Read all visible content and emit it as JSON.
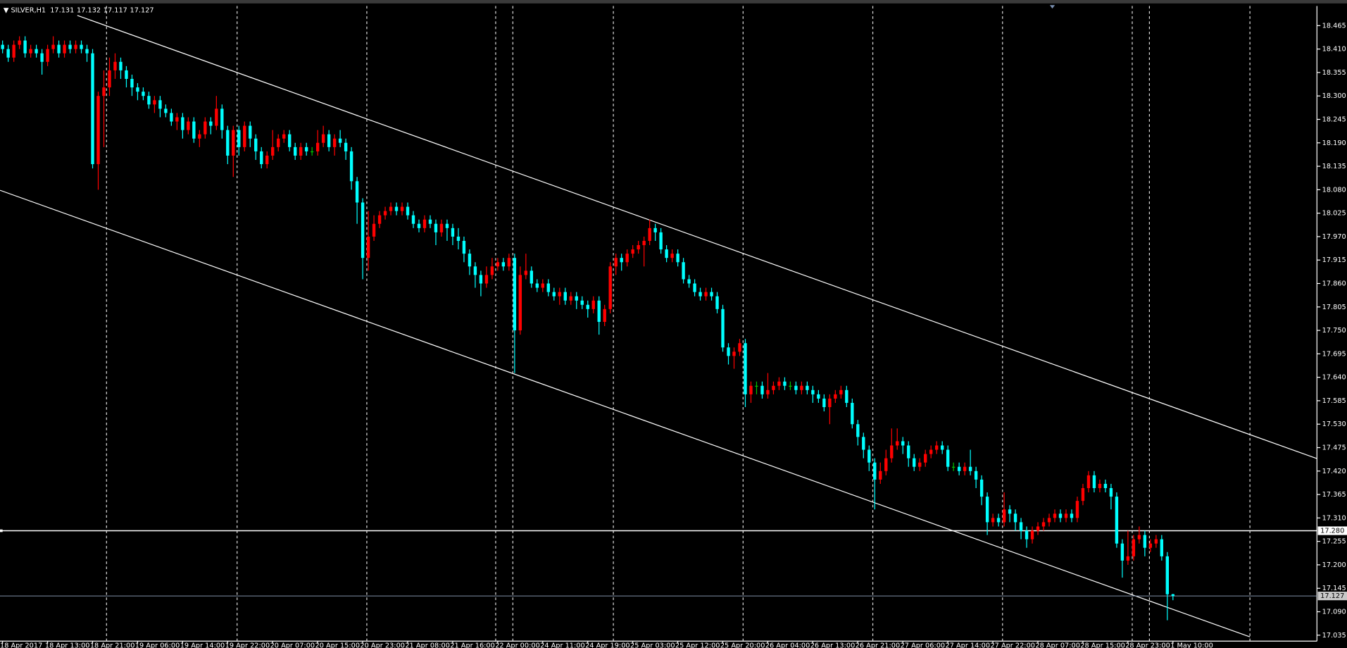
{
  "chart_data": {
    "type": "candlestick",
    "title": "SILVER,H1",
    "categories": [
      "18 Apr 2017",
      null,
      null,
      null,
      null,
      null,
      null,
      null,
      "18 Apr 13:00",
      null,
      null,
      null,
      null,
      null,
      null,
      null,
      "18 Apr 21:00",
      null,
      null,
      null,
      null,
      null,
      null,
      null,
      "19 Apr 06:00",
      null,
      null,
      null,
      null,
      null,
      null,
      null,
      "19 Apr 14:00",
      null,
      null,
      null,
      null,
      null,
      null,
      null,
      "19 Apr 22:00",
      null,
      null,
      null,
      null,
      null,
      null,
      null,
      "20 Apr 07:00",
      null,
      null,
      null,
      null,
      null,
      null,
      null,
      "20 Apr 15:00",
      null,
      null,
      null,
      null,
      null,
      null,
      null,
      "20 Apr 23:00",
      null,
      null,
      null,
      null,
      null,
      null,
      null,
      "21 Apr 08:00",
      null,
      null,
      null,
      null,
      null,
      null,
      null,
      "21 Apr 16:00",
      null,
      null,
      null,
      null,
      null,
      null,
      null,
      "22 Apr 00:00",
      null,
      null,
      null,
      null,
      null,
      null,
      null,
      "24 Apr 11:00",
      null,
      null,
      null,
      null,
      null,
      null,
      null,
      "24 Apr 19:00",
      null,
      null,
      null,
      null,
      null,
      null,
      null,
      "25 Apr 03:00",
      null,
      null,
      null,
      null,
      null,
      null,
      null,
      "25 Apr 12:00",
      null,
      null,
      null,
      null,
      null,
      null,
      null,
      "25 Apr 20:00",
      null,
      null,
      null,
      null,
      null,
      null,
      null,
      "26 Apr 04:00",
      null,
      null,
      null,
      null,
      null,
      null,
      null,
      "26 Apr 13:00",
      null,
      null,
      null,
      null,
      null,
      null,
      null,
      "26 Apr 21:00",
      null,
      null,
      null,
      null,
      null,
      null,
      null,
      "27 Apr 06:00",
      null,
      null,
      null,
      null,
      null,
      null,
      null,
      "27 Apr 14:00",
      null,
      null,
      null,
      null,
      null,
      null,
      null,
      "27 Apr 22:00",
      null,
      null,
      null,
      null,
      null,
      null,
      null,
      "28 Apr 07:00",
      null,
      null,
      null,
      null,
      null,
      null,
      null,
      "28 Apr 15:00",
      null,
      null,
      null,
      null,
      null,
      null,
      null,
      "28 Apr 23:00",
      null,
      null,
      null,
      null,
      null,
      null,
      null,
      "1 May 10:00"
    ],
    "open": [
      18.42,
      18.41,
      18.39,
      18.42,
      18.43,
      18.4,
      18.41,
      18.4,
      18.38,
      18.41,
      18.42,
      18.4,
      18.42,
      18.41,
      18.42,
      18.41,
      18.4,
      18.14,
      18.3,
      18.32,
      18.36,
      18.38,
      18.36,
      18.34,
      18.32,
      18.31,
      18.3,
      18.28,
      18.29,
      18.27,
      18.26,
      18.24,
      18.25,
      18.22,
      18.24,
      18.2,
      18.21,
      18.24,
      18.23,
      18.27,
      18.22,
      18.16,
      18.22,
      18.18,
      18.23,
      18.2,
      18.17,
      18.14,
      18.16,
      18.18,
      18.2,
      18.21,
      18.18,
      18.16,
      18.18,
      18.17,
      18.17,
      18.19,
      18.21,
      18.18,
      18.2,
      18.19,
      18.17,
      18.1,
      18.05,
      17.92,
      17.97,
      18.0,
      18.02,
      18.03,
      18.04,
      18.03,
      18.04,
      18.02,
      18.0,
      17.99,
      18.01,
      18.0,
      17.98,
      18.0,
      17.99,
      17.97,
      17.96,
      17.93,
      17.9,
      17.88,
      17.86,
      17.88,
      17.9,
      17.91,
      17.9,
      17.92,
      17.75,
      17.88,
      17.89,
      17.86,
      17.85,
      17.86,
      17.84,
      17.83,
      17.84,
      17.82,
      17.83,
      17.82,
      17.81,
      17.8,
      17.82,
      17.77,
      17.8,
      17.9,
      17.92,
      17.91,
      17.93,
      17.94,
      17.95,
      17.96,
      17.99,
      17.98,
      17.94,
      17.92,
      17.93,
      17.91,
      17.87,
      17.86,
      17.84,
      17.83,
      17.84,
      17.83,
      17.8,
      17.71,
      17.69,
      17.7,
      17.72,
      17.6,
      17.62,
      17.62,
      17.6,
      17.61,
      17.62,
      17.63,
      17.62,
      17.62,
      17.61,
      17.62,
      17.61,
      17.6,
      17.59,
      17.57,
      17.59,
      17.6,
      17.61,
      17.58,
      17.53,
      17.5,
      17.47,
      17.44,
      17.4,
      17.42,
      17.45,
      17.48,
      17.49,
      17.48,
      17.45,
      17.43,
      17.44,
      17.46,
      17.47,
      17.48,
      17.47,
      17.43,
      17.43,
      17.42,
      17.43,
      17.42,
      17.4,
      17.36,
      17.3,
      17.31,
      17.3,
      17.33,
      17.32,
      17.3,
      17.28,
      17.26,
      17.28,
      17.29,
      17.3,
      17.31,
      17.32,
      17.31,
      17.32,
      17.31,
      17.35,
      17.38,
      17.41,
      17.38,
      17.39,
      17.38,
      17.36,
      17.25,
      17.21,
      17.22,
      17.26,
      17.27,
      17.24,
      17.25,
      17.26,
      17.22,
      17.131
    ],
    "high": [
      18.43,
      18.42,
      18.43,
      18.44,
      18.44,
      18.42,
      18.42,
      18.41,
      18.42,
      18.44,
      18.43,
      18.43,
      18.43,
      18.43,
      18.43,
      18.42,
      18.41,
      18.31,
      18.36,
      18.39,
      18.4,
      18.39,
      18.37,
      18.35,
      18.33,
      18.32,
      18.31,
      18.3,
      18.3,
      18.28,
      18.27,
      18.26,
      18.26,
      18.25,
      18.25,
      18.22,
      18.25,
      18.25,
      18.3,
      18.28,
      18.23,
      18.23,
      18.23,
      18.24,
      18.24,
      18.21,
      18.18,
      18.17,
      18.22,
      18.21,
      18.22,
      18.22,
      18.19,
      18.19,
      18.19,
      18.18,
      18.22,
      18.23,
      18.22,
      18.21,
      18.22,
      18.2,
      18.18,
      18.11,
      18.06,
      18.03,
      18.02,
      18.03,
      18.04,
      18.05,
      18.05,
      18.05,
      18.05,
      18.03,
      18.01,
      18.02,
      18.02,
      18.01,
      18.01,
      18.01,
      18.0,
      17.99,
      17.97,
      17.94,
      17.91,
      17.89,
      17.9,
      17.92,
      17.92,
      17.92,
      17.93,
      17.93,
      17.9,
      17.93,
      17.9,
      17.87,
      17.87,
      17.87,
      17.85,
      17.85,
      17.85,
      17.84,
      17.84,
      17.83,
      17.82,
      17.83,
      17.83,
      17.81,
      17.91,
      17.93,
      17.93,
      17.94,
      17.95,
      17.96,
      17.97,
      18.01,
      18.0,
      17.99,
      17.95,
      17.94,
      17.94,
      17.92,
      17.88,
      17.87,
      17.85,
      17.85,
      17.85,
      17.84,
      17.81,
      17.72,
      17.71,
      17.73,
      17.73,
      17.63,
      17.63,
      17.63,
      17.65,
      17.63,
      17.64,
      17.64,
      17.63,
      17.63,
      17.63,
      17.63,
      17.62,
      17.61,
      17.6,
      17.6,
      17.61,
      17.62,
      17.62,
      17.59,
      17.54,
      17.51,
      17.48,
      17.45,
      17.44,
      17.47,
      17.52,
      17.52,
      17.5,
      17.49,
      17.46,
      17.45,
      17.47,
      17.48,
      17.49,
      17.49,
      17.48,
      17.44,
      17.44,
      17.44,
      17.47,
      17.43,
      17.41,
      17.37,
      17.32,
      17.32,
      17.37,
      17.34,
      17.33,
      17.31,
      17.29,
      17.29,
      17.3,
      17.31,
      17.32,
      17.33,
      17.33,
      17.33,
      17.33,
      17.36,
      17.39,
      17.42,
      17.42,
      17.4,
      17.4,
      17.39,
      17.37,
      17.26,
      17.28,
      17.27,
      17.29,
      17.28,
      17.26,
      17.27,
      17.27,
      17.23,
      17.132
    ],
    "low": [
      18.4,
      18.38,
      18.38,
      18.41,
      18.39,
      18.39,
      18.39,
      18.35,
      18.37,
      18.4,
      18.39,
      18.39,
      18.4,
      18.4,
      18.4,
      18.38,
      18.13,
      18.08,
      18.18,
      18.3,
      18.34,
      18.34,
      18.32,
      18.3,
      18.29,
      18.29,
      18.27,
      18.26,
      18.25,
      18.25,
      18.23,
      18.22,
      18.2,
      18.21,
      18.19,
      18.18,
      18.2,
      18.21,
      18.22,
      18.2,
      18.14,
      18.11,
      18.16,
      18.17,
      18.18,
      18.15,
      18.13,
      18.13,
      18.15,
      18.17,
      18.19,
      18.17,
      18.15,
      18.15,
      18.16,
      18.16,
      18.16,
      18.18,
      18.17,
      18.16,
      18.18,
      18.15,
      18.08,
      18.0,
      17.87,
      17.89,
      17.96,
      17.99,
      18.01,
      18.02,
      18.02,
      18.02,
      18.01,
      17.99,
      17.98,
      17.98,
      17.99,
      17.95,
      17.97,
      17.96,
      17.95,
      17.94,
      17.91,
      17.88,
      17.85,
      17.83,
      17.85,
      17.87,
      17.89,
      17.89,
      17.89,
      17.65,
      17.74,
      17.87,
      17.85,
      17.84,
      17.84,
      17.83,
      17.82,
      17.81,
      17.81,
      17.81,
      17.8,
      17.8,
      17.78,
      17.79,
      17.74,
      17.76,
      17.79,
      17.88,
      17.89,
      17.9,
      17.92,
      17.93,
      17.9,
      17.95,
      17.96,
      17.93,
      17.91,
      17.91,
      17.9,
      17.86,
      17.85,
      17.83,
      17.82,
      17.82,
      17.82,
      17.79,
      17.7,
      17.67,
      17.66,
      17.69,
      17.57,
      17.58,
      17.6,
      17.59,
      17.59,
      17.6,
      17.61,
      17.61,
      17.61,
      17.6,
      17.6,
      17.6,
      17.58,
      17.58,
      17.56,
      17.53,
      17.58,
      17.59,
      17.57,
      17.52,
      17.48,
      17.45,
      17.42,
      17.33,
      17.39,
      17.41,
      17.44,
      17.47,
      17.46,
      17.43,
      17.42,
      17.42,
      17.43,
      17.45,
      17.46,
      17.46,
      17.42,
      17.42,
      17.41,
      17.41,
      17.41,
      17.38,
      17.34,
      17.27,
      17.29,
      17.29,
      17.29,
      17.3,
      17.28,
      17.26,
      17.24,
      17.25,
      17.27,
      17.28,
      17.29,
      17.3,
      17.3,
      17.3,
      17.3,
      17.3,
      17.34,
      17.37,
      17.37,
      17.37,
      17.37,
      17.33,
      17.24,
      17.17,
      17.2,
      17.21,
      17.25,
      17.22,
      17.23,
      17.24,
      17.21,
      17.07,
      17.117
    ],
    "close": [
      18.41,
      18.39,
      18.42,
      18.43,
      18.4,
      18.41,
      18.4,
      18.38,
      18.41,
      18.42,
      18.4,
      18.42,
      18.41,
      18.42,
      18.41,
      18.4,
      18.14,
      18.3,
      18.32,
      18.36,
      18.38,
      18.36,
      18.34,
      18.32,
      18.31,
      18.3,
      18.28,
      18.29,
      18.27,
      18.26,
      18.24,
      18.25,
      18.22,
      18.24,
      18.2,
      18.21,
      18.24,
      18.23,
      18.27,
      18.22,
      18.16,
      18.22,
      18.18,
      18.23,
      18.2,
      18.17,
      18.14,
      18.16,
      18.18,
      18.2,
      18.21,
      18.18,
      18.16,
      18.18,
      18.17,
      18.17,
      18.19,
      18.21,
      18.18,
      18.2,
      18.19,
      18.17,
      18.1,
      18.05,
      17.92,
      17.97,
      18.0,
      18.02,
      18.03,
      18.04,
      18.03,
      18.04,
      18.02,
      18.0,
      17.99,
      18.01,
      18.0,
      17.98,
      18.0,
      17.99,
      17.97,
      17.96,
      17.93,
      17.9,
      17.88,
      17.86,
      17.88,
      17.9,
      17.91,
      17.9,
      17.92,
      17.75,
      17.88,
      17.89,
      17.86,
      17.85,
      17.86,
      17.84,
      17.83,
      17.84,
      17.82,
      17.83,
      17.82,
      17.81,
      17.8,
      17.82,
      17.77,
      17.8,
      17.9,
      17.92,
      17.91,
      17.93,
      17.94,
      17.95,
      17.96,
      17.99,
      17.98,
      17.94,
      17.92,
      17.93,
      17.91,
      17.87,
      17.86,
      17.84,
      17.83,
      17.84,
      17.83,
      17.8,
      17.71,
      17.69,
      17.7,
      17.72,
      17.6,
      17.62,
      17.62,
      17.6,
      17.61,
      17.62,
      17.63,
      17.62,
      17.62,
      17.61,
      17.62,
      17.61,
      17.6,
      17.59,
      17.57,
      17.59,
      17.6,
      17.61,
      17.58,
      17.53,
      17.5,
      17.47,
      17.44,
      17.4,
      17.42,
      17.45,
      17.48,
      17.49,
      17.48,
      17.45,
      17.43,
      17.44,
      17.46,
      17.47,
      17.48,
      17.47,
      17.43,
      17.43,
      17.42,
      17.43,
      17.42,
      17.4,
      17.36,
      17.3,
      17.31,
      17.3,
      17.33,
      17.32,
      17.3,
      17.28,
      17.26,
      17.28,
      17.29,
      17.3,
      17.31,
      17.32,
      17.31,
      17.32,
      17.31,
      17.35,
      17.38,
      17.41,
      17.38,
      17.39,
      17.38,
      17.36,
      17.25,
      17.21,
      17.22,
      17.26,
      17.27,
      17.24,
      17.25,
      17.26,
      17.22,
      17.131,
      17.127
    ],
    "up_color": "#ff0000",
    "down_color": "#00ffff",
    "flat_color": "#00c000",
    "ylim": [
      17.021,
      18.511
    ],
    "yticks": [
      18.465,
      {
        "value": 18.41,
        "label": "18.410"
      },
      18.355,
      {
        "value": 18.3,
        "label": "18.300"
      },
      18.245,
      {
        "value": 18.19,
        "label": "18.190"
      },
      18.135,
      {
        "value": 18.08,
        "label": "18.080"
      },
      18.025,
      {
        "value": 17.97,
        "label": "17.970"
      },
      17.915,
      {
        "value": 17.86,
        "label": "17.860"
      },
      17.805,
      {
        "value": 17.75,
        "label": "17.750"
      },
      17.695,
      {
        "value": 17.64,
        "label": "17.640"
      },
      17.585,
      {
        "value": 17.53,
        "label": "17.530"
      },
      17.475,
      {
        "value": 17.42,
        "label": "17.420"
      },
      17.365,
      {
        "value": 17.31,
        "label": "17.310"
      },
      17.255,
      {
        "value": 17.2,
        "label": "17.200"
      },
      17.145,
      {
        "value": 17.09,
        "label": "17.090"
      },
      17.035
    ],
    "hline": {
      "value": 17.28,
      "label": "17.280"
    },
    "grid": false
  }
}
